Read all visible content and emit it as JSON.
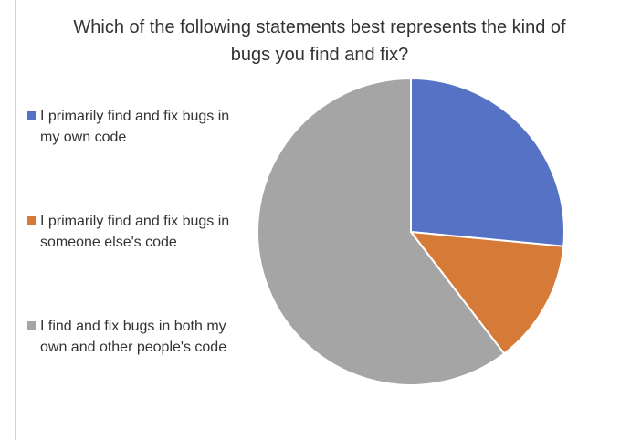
{
  "chart_data": {
    "type": "pie",
    "title": "Which of the following statements best represents the kind of bugs you find and fix?",
    "categories": [
      "I primarily find and fix bugs in my own code",
      "I primarily find and fix bugs in someone else's code",
      "I find and fix bugs  in both my own and other people's code"
    ],
    "values": [
      26.5,
      13.1,
      60.4
    ],
    "colors": [
      "#5572c4",
      "#d67b37",
      "#a5a5a5"
    ],
    "legend": "left"
  }
}
